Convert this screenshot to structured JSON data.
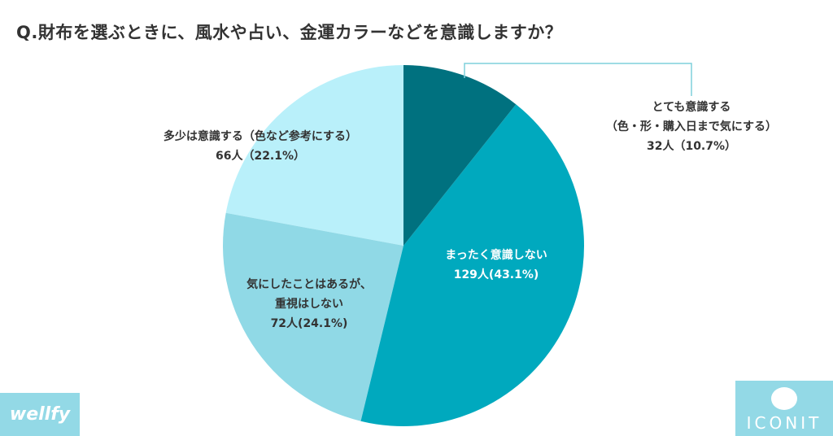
{
  "chart_data": {
    "type": "pie",
    "title": "Q.財布を選ぶときに、風水や占い、金運カラーなどを意識しますか？",
    "slices": [
      {
        "label": "とても意識する（色・形・購入日まで気にする）",
        "label_lines": [
          "とても意識する",
          "（色・形・購入日まで気にする）"
        ],
        "count_text": "32人（10.7%）",
        "value": 10.7,
        "count": 32,
        "color": "#00717f"
      },
      {
        "label": "まったく意識しない",
        "label_lines": [
          "まったく意識しない"
        ],
        "count_text": "129人(43.1%)",
        "value": 43.1,
        "count": 129,
        "color": "#00a9be"
      },
      {
        "label": "気にしたことはあるが、重視はしない",
        "label_lines": [
          "気にしたことはあるが、",
          "重視はしない"
        ],
        "count_text": "72人(24.1%)",
        "value": 24.1,
        "count": 72,
        "color": "#90d9e6"
      },
      {
        "label": "多少は意識する（色など参考にする）",
        "label_lines": [
          "多少は意識する（色など参考にする）"
        ],
        "count_text": "66人（22.1%）",
        "value": 22.1,
        "count": 66,
        "color": "#b9f0fa"
      }
    ]
  },
  "logos": {
    "left": "wellfy",
    "right": "ICONIT"
  }
}
